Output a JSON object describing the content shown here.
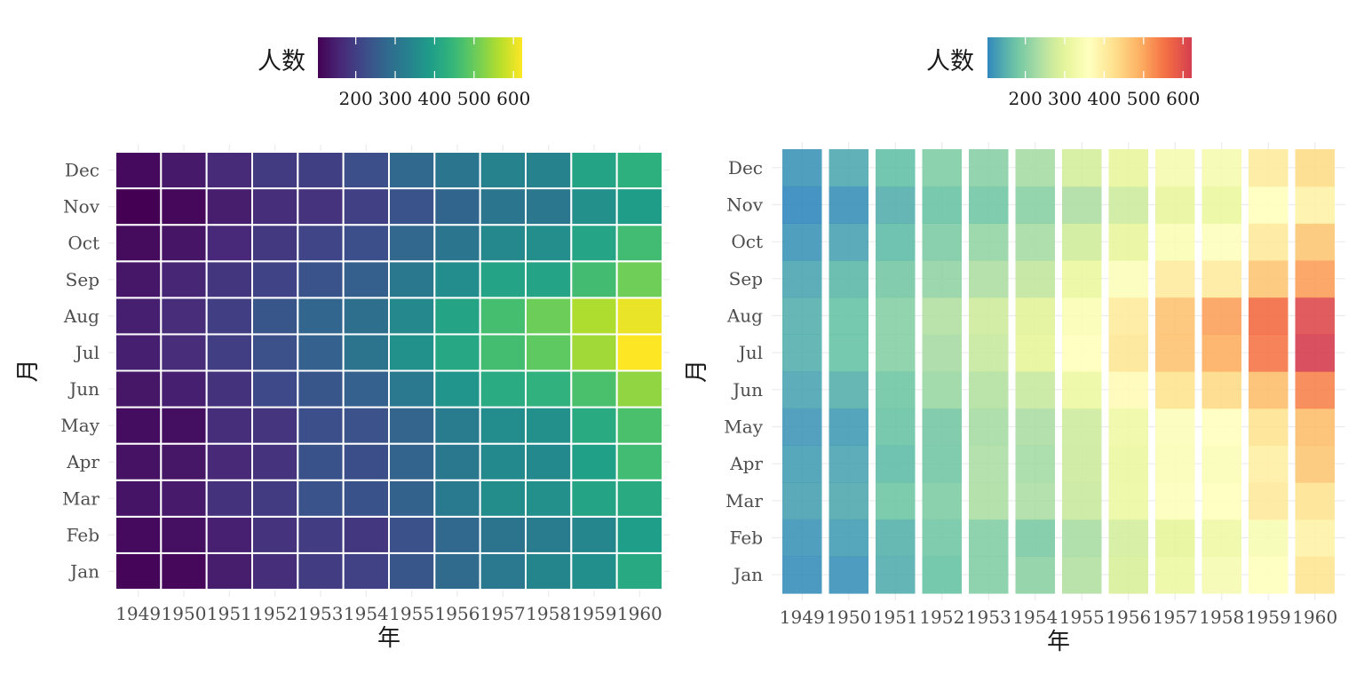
{
  "chart_data": [
    {
      "type": "heatmap",
      "palette": "viridis",
      "xlabel": "年",
      "ylabel": "月",
      "legend": {
        "title": "人数",
        "position": "top",
        "ticks": [
          200,
          300,
          400,
          500,
          600
        ],
        "range": [
          104,
          622
        ]
      },
      "x": [
        "1949",
        "1950",
        "1951",
        "1952",
        "1953",
        "1954",
        "1955",
        "1956",
        "1957",
        "1958",
        "1959",
        "1960"
      ],
      "y": [
        "Jan",
        "Feb",
        "Mar",
        "Apr",
        "May",
        "Jun",
        "Jul",
        "Aug",
        "Sep",
        "Oct",
        "Nov",
        "Dec"
      ],
      "tile_border": "#ffffff",
      "values": [
        [
          112,
          115,
          145,
          171,
          196,
          204,
          242,
          284,
          315,
          340,
          360,
          417
        ],
        [
          118,
          126,
          150,
          180,
          196,
          188,
          233,
          277,
          301,
          318,
          342,
          391
        ],
        [
          132,
          141,
          178,
          193,
          236,
          235,
          267,
          317,
          356,
          362,
          406,
          419
        ],
        [
          129,
          135,
          163,
          181,
          235,
          227,
          269,
          313,
          348,
          348,
          396,
          461
        ],
        [
          121,
          125,
          172,
          183,
          229,
          234,
          270,
          318,
          355,
          363,
          420,
          472
        ],
        [
          135,
          149,
          178,
          218,
          243,
          264,
          315,
          374,
          422,
          435,
          472,
          535
        ],
        [
          148,
          170,
          199,
          230,
          264,
          302,
          364,
          413,
          465,
          491,
          548,
          622
        ],
        [
          148,
          170,
          199,
          242,
          272,
          293,
          347,
          405,
          467,
          505,
          559,
          606
        ],
        [
          136,
          158,
          184,
          209,
          237,
          259,
          312,
          355,
          404,
          404,
          463,
          508
        ],
        [
          119,
          133,
          162,
          191,
          211,
          229,
          274,
          306,
          347,
          359,
          407,
          461
        ],
        [
          104,
          114,
          146,
          172,
          180,
          203,
          237,
          271,
          305,
          310,
          362,
          390
        ],
        [
          118,
          140,
          166,
          194,
          201,
          229,
          278,
          306,
          336,
          337,
          405,
          432
        ]
      ]
    },
    {
      "type": "heatmap",
      "palette": "spectral-reversed",
      "xlabel": "年",
      "ylabel": "月",
      "legend": {
        "title": "人数",
        "position": "top",
        "ticks": [
          200,
          300,
          400,
          500,
          600
        ],
        "range": [
          104,
          622
        ]
      },
      "x": [
        "1949",
        "1950",
        "1951",
        "1952",
        "1953",
        "1954",
        "1955",
        "1956",
        "1957",
        "1958",
        "1959",
        "1960"
      ],
      "y": [
        "Jan",
        "Feb",
        "Mar",
        "Apr",
        "May",
        "Jun",
        "Jul",
        "Aug",
        "Sep",
        "Oct",
        "Nov",
        "Dec"
      ],
      "tile_border": "none",
      "column_gaps": true,
      "values": [
        [
          112,
          115,
          145,
          171,
          196,
          204,
          242,
          284,
          315,
          340,
          360,
          417
        ],
        [
          118,
          126,
          150,
          180,
          196,
          188,
          233,
          277,
          301,
          318,
          342,
          391
        ],
        [
          132,
          141,
          178,
          193,
          236,
          235,
          267,
          317,
          356,
          362,
          406,
          419
        ],
        [
          129,
          135,
          163,
          181,
          235,
          227,
          269,
          313,
          348,
          348,
          396,
          461
        ],
        [
          121,
          125,
          172,
          183,
          229,
          234,
          270,
          318,
          355,
          363,
          420,
          472
        ],
        [
          135,
          149,
          178,
          218,
          243,
          264,
          315,
          374,
          422,
          435,
          472,
          535
        ],
        [
          148,
          170,
          199,
          230,
          264,
          302,
          364,
          413,
          465,
          491,
          548,
          622
        ],
        [
          148,
          170,
          199,
          242,
          272,
          293,
          347,
          405,
          467,
          505,
          559,
          606
        ],
        [
          136,
          158,
          184,
          209,
          237,
          259,
          312,
          355,
          404,
          404,
          463,
          508
        ],
        [
          119,
          133,
          162,
          191,
          211,
          229,
          274,
          306,
          347,
          359,
          407,
          461
        ],
        [
          104,
          114,
          146,
          172,
          180,
          203,
          237,
          271,
          305,
          310,
          362,
          390
        ],
        [
          118,
          140,
          166,
          194,
          201,
          229,
          278,
          306,
          336,
          337,
          405,
          432
        ]
      ]
    }
  ]
}
